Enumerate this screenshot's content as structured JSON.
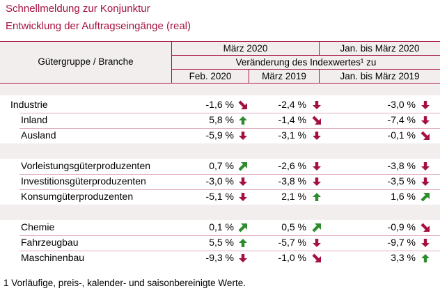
{
  "title": {
    "line1": "Schnellmeldung zur Konjunktur",
    "line2": "Entwicklung der Auftragseingänge (real)"
  },
  "header": {
    "group_label": "Gütergruppe / Branche",
    "period1": "März 2020",
    "period2": "Jan. bis März 2020",
    "change_label": "Veränderung des Indexwertes¹ zu",
    "col1": "Feb. 2020",
    "col2": "März 2019",
    "col3": "Jan. bis März 2019"
  },
  "colors": {
    "accent": "#a5113e",
    "up": "#2e8b2e",
    "down": "#a5113e",
    "band": "#f2eeee"
  },
  "rows": [
    {
      "label": "Industrie",
      "v1": "-1,6 %",
      "a1": "down-right",
      "v2": "-2,4 %",
      "a2": "down",
      "v3": "-3,0 %",
      "a3": "down"
    },
    {
      "label": "Inland",
      "v1": "5,8 %",
      "a1": "up",
      "v2": "-1,4 %",
      "a2": "down-right",
      "v3": "-7,4 %",
      "a3": "down"
    },
    {
      "label": "Ausland",
      "v1": "-5,9 %",
      "a1": "down",
      "v2": "-3,1 %",
      "a2": "down",
      "v3": "-0,1 %",
      "a3": "down-right"
    },
    {
      "label": "Vorleistungsgüterproduzenten",
      "v1": "0,7 %",
      "a1": "up-right",
      "v2": "-2,6 %",
      "a2": "down",
      "v3": "-3,8 %",
      "a3": "down"
    },
    {
      "label": "Investitionsgüterproduzenten",
      "v1": "-3,0 %",
      "a1": "down",
      "v2": "-3,8 %",
      "a2": "down",
      "v3": "-3,5 %",
      "a3": "down"
    },
    {
      "label": "Konsumgüterproduzenten",
      "v1": "-5,1 %",
      "a1": "down",
      "v2": "2,1 %",
      "a2": "up",
      "v3": "1,6 %",
      "a3": "up-right"
    },
    {
      "label": "Chemie",
      "v1": "0,1 %",
      "a1": "up-right",
      "v2": "0,5 %",
      "a2": "up-right",
      "v3": "-0,9 %",
      "a3": "down-right"
    },
    {
      "label": "Fahrzeugbau",
      "v1": "5,5 %",
      "a1": "up",
      "v2": "-5,7 %",
      "a2": "down",
      "v3": "-9,7 %",
      "a3": "down"
    },
    {
      "label": "Maschinenbau",
      "v1": "-9,3 %",
      "a1": "down",
      "v2": "-1,0 %",
      "a2": "down-right",
      "v3": "3,3 %",
      "a3": "up"
    }
  ],
  "footnote": "1 Vorläufige, preis-, kalender- und saisonbereinigte Werte."
}
